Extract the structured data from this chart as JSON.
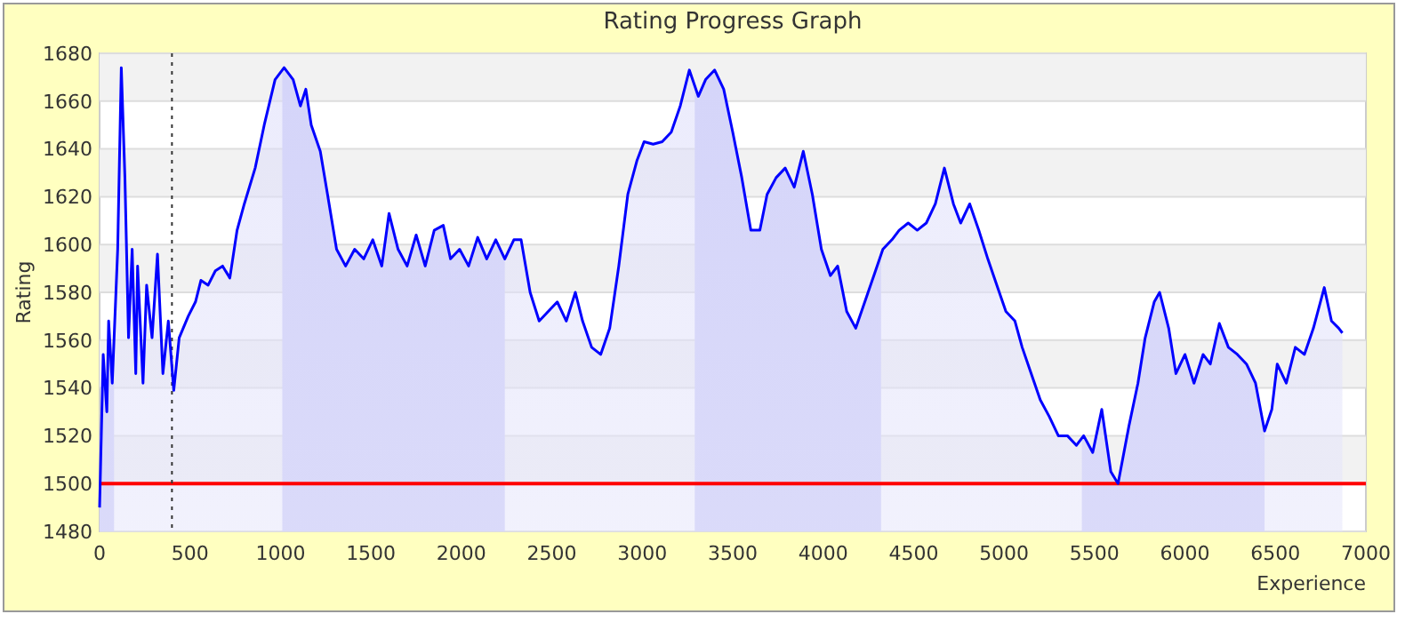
{
  "chart_data": {
    "type": "area",
    "title": "Rating Progress Graph",
    "xlabel": "Experience",
    "ylabel": "Rating",
    "xlim": [
      0,
      7000
    ],
    "ylim": [
      1480,
      1680
    ],
    "xticks": [
      0,
      500,
      1000,
      1500,
      2000,
      2500,
      3000,
      3500,
      4000,
      4500,
      5000,
      5500,
      6000,
      6500,
      7000
    ],
    "yticks": [
      1480,
      1500,
      1520,
      1540,
      1560,
      1580,
      1600,
      1620,
      1640,
      1660,
      1680
    ],
    "grid": "y",
    "ref_lines": [
      {
        "axis": "y",
        "value": 1500,
        "color": "#ff0000",
        "line_style": "solid"
      },
      {
        "axis": "x",
        "value": 400,
        "color": "#333333",
        "line_style": "dotted"
      }
    ],
    "bands": [
      {
        "axis": "x",
        "from": 0,
        "to": 80,
        "color": "#ccccf8"
      },
      {
        "axis": "x",
        "from": 1010,
        "to": 2240,
        "color": "#ccccf8"
      },
      {
        "axis": "x",
        "from": 3290,
        "to": 4320,
        "color": "#ccccf8"
      },
      {
        "axis": "x",
        "from": 5430,
        "to": 6440,
        "color": "#ccccf8"
      }
    ],
    "series": [
      {
        "color": "#0000ff",
        "x": [
          0,
          20,
          40,
          50,
          70,
          100,
          120,
          140,
          160,
          180,
          200,
          210,
          240,
          260,
          290,
          320,
          350,
          380,
          410,
          440,
          490,
          530,
          560,
          600,
          640,
          680,
          720,
          760,
          800,
          860,
          910,
          970,
          1020,
          1070,
          1110,
          1140,
          1170,
          1220,
          1260,
          1310,
          1360,
          1410,
          1460,
          1510,
          1560,
          1600,
          1650,
          1700,
          1750,
          1800,
          1850,
          1900,
          1940,
          1990,
          2040,
          2090,
          2140,
          2190,
          2240,
          2290,
          2330,
          2380,
          2430,
          2480,
          2530,
          2580,
          2630,
          2670,
          2720,
          2770,
          2820,
          2870,
          2920,
          2970,
          3010,
          3060,
          3110,
          3160,
          3210,
          3260,
          3310,
          3350,
          3400,
          3450,
          3500,
          3550,
          3600,
          3650,
          3690,
          3740,
          3790,
          3840,
          3890,
          3940,
          3990,
          4040,
          4080,
          4130,
          4180,
          4230,
          4280,
          4330,
          4380,
          4420,
          4470,
          4520,
          4570,
          4620,
          4670,
          4720,
          4760,
          4810,
          4860,
          4910,
          4960,
          5010,
          5060,
          5100,
          5150,
          5200,
          5250,
          5300,
          5350,
          5400,
          5440,
          5490,
          5540,
          5590,
          5630,
          5690,
          5740,
          5780,
          5830,
          5860,
          5910,
          5950,
          6000,
          6050,
          6100,
          6140,
          6190,
          6240,
          6290,
          6340,
          6390,
          6440,
          6480,
          6510,
          6560,
          6610,
          6660,
          6710,
          6770,
          6810,
          6850,
          6870
        ],
        "values": [
          1490,
          1554,
          1530,
          1568,
          1542,
          1598,
          1674,
          1628,
          1561,
          1598,
          1546,
          1591,
          1542,
          1583,
          1561,
          1596,
          1546,
          1568,
          1539,
          1561,
          1570,
          1576,
          1585,
          1583,
          1589,
          1591,
          1586,
          1606,
          1617,
          1632,
          1650,
          1669,
          1674,
          1669,
          1658,
          1665,
          1650,
          1639,
          1621,
          1598,
          1591,
          1598,
          1594,
          1602,
          1591,
          1613,
          1598,
          1591,
          1604,
          1591,
          1606,
          1608,
          1594,
          1598,
          1591,
          1603,
          1594,
          1602,
          1594,
          1602,
          1602,
          1580,
          1568,
          1572,
          1576,
          1568,
          1580,
          1568,
          1557,
          1554,
          1565,
          1591,
          1621,
          1635,
          1643,
          1642,
          1643,
          1647,
          1658,
          1673,
          1662,
          1669,
          1673,
          1665,
          1647,
          1628,
          1606,
          1606,
          1621,
          1628,
          1632,
          1624,
          1639,
          1621,
          1598,
          1587,
          1591,
          1572,
          1565,
          1576,
          1587,
          1598,
          1602,
          1606,
          1609,
          1606,
          1609,
          1617,
          1632,
          1617,
          1609,
          1617,
          1606,
          1594,
          1583,
          1572,
          1568,
          1557,
          1546,
          1535,
          1528,
          1520,
          1520,
          1516,
          1520,
          1513,
          1531,
          1505,
          1500,
          1524,
          1542,
          1561,
          1576,
          1580,
          1565,
          1546,
          1554,
          1542,
          1554,
          1550,
          1567,
          1557,
          1554,
          1550,
          1542,
          1522,
          1531,
          1550,
          1542,
          1557,
          1554,
          1565,
          1582,
          1568,
          1565,
          1563
        ]
      }
    ]
  }
}
